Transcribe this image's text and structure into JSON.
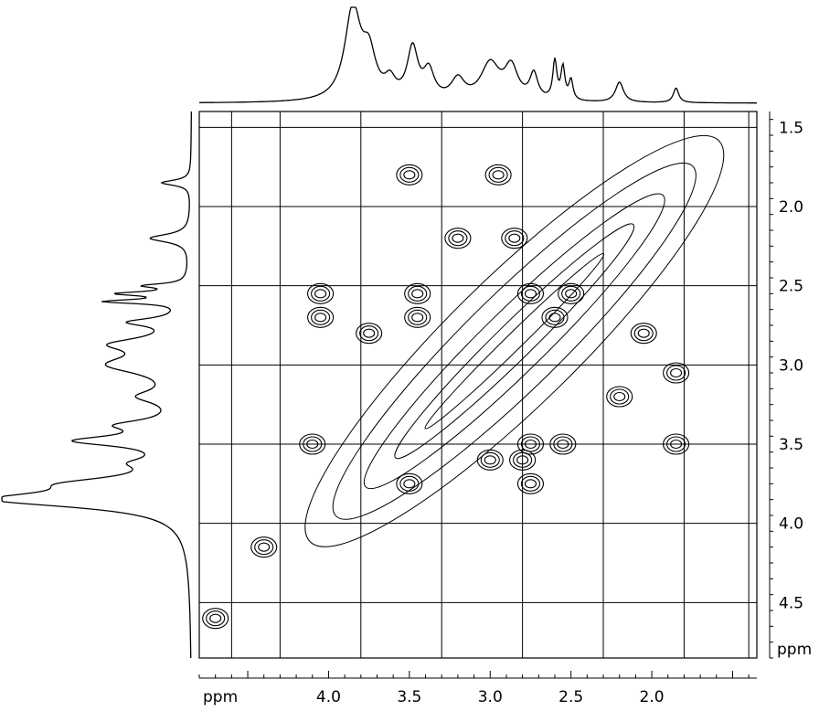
{
  "chart_data": {
    "type": "2d-contour",
    "title": "",
    "xlabel": "ppm",
    "ylabel": "ppm",
    "x_axis": {
      "direction": "reversed",
      "range": [
        4.8,
        1.35
      ],
      "major_ticks": [
        4.0,
        3.5,
        3.0,
        2.5,
        2.0
      ],
      "tick_labels": [
        "4.0",
        "3.5",
        "3.0",
        "2.5",
        "2.0"
      ],
      "unit_label": "ppm"
    },
    "y_axis": {
      "direction": "reversed",
      "range": [
        1.4,
        4.85
      ],
      "major_ticks": [
        1.5,
        2.0,
        2.5,
        3.0,
        3.5,
        4.0,
        4.5
      ],
      "tick_labels": [
        "1.5",
        "2.0",
        "2.5",
        "3.0",
        "3.5",
        "4.0",
        "4.5"
      ],
      "unit_label": "ppm"
    },
    "grid": true,
    "grid_x": [
      4.6,
      4.3,
      3.8,
      3.3,
      2.8,
      2.3,
      1.8,
      1.4
    ],
    "grid_y": [
      1.5,
      2.0,
      2.5,
      3.0,
      3.5,
      4.0,
      4.5
    ],
    "projection_1d": {
      "peaks": [
        {
          "ppm": 3.85,
          "height": 1.0,
          "width": 0.06
        },
        {
          "ppm": 3.75,
          "height": 0.45,
          "width": 0.05
        },
        {
          "ppm": 3.62,
          "height": 0.18,
          "width": 0.04
        },
        {
          "ppm": 3.48,
          "height": 0.55,
          "width": 0.04
        },
        {
          "ppm": 3.38,
          "height": 0.3,
          "width": 0.04
        },
        {
          "ppm": 3.2,
          "height": 0.22,
          "width": 0.05
        },
        {
          "ppm": 3.0,
          "height": 0.4,
          "width": 0.07
        },
        {
          "ppm": 2.87,
          "height": 0.35,
          "width": 0.05
        },
        {
          "ppm": 2.73,
          "height": 0.28,
          "width": 0.03
        },
        {
          "ppm": 2.6,
          "height": 0.42,
          "width": 0.015
        },
        {
          "ppm": 2.55,
          "height": 0.35,
          "width": 0.015
        },
        {
          "ppm": 2.5,
          "height": 0.22,
          "width": 0.015
        },
        {
          "ppm": 2.2,
          "height": 0.22,
          "width": 0.03
        },
        {
          "ppm": 1.85,
          "height": 0.16,
          "width": 0.02
        }
      ]
    },
    "diagonal": {
      "from": [
        1.7,
        1.7
      ],
      "to": [
        4.0,
        4.0
      ]
    },
    "cross_peaks": [
      {
        "x": 3.5,
        "y": 1.8
      },
      {
        "x": 2.95,
        "y": 1.8
      },
      {
        "x": 3.2,
        "y": 2.2
      },
      {
        "x": 2.85,
        "y": 2.2
      },
      {
        "x": 4.05,
        "y": 2.55
      },
      {
        "x": 3.45,
        "y": 2.55
      },
      {
        "x": 2.75,
        "y": 2.55
      },
      {
        "x": 2.5,
        "y": 2.55
      },
      {
        "x": 4.05,
        "y": 2.7
      },
      {
        "x": 3.45,
        "y": 2.7
      },
      {
        "x": 2.6,
        "y": 2.7
      },
      {
        "x": 3.75,
        "y": 2.8
      },
      {
        "x": 2.05,
        "y": 2.8
      },
      {
        "x": 1.85,
        "y": 3.05
      },
      {
        "x": 2.2,
        "y": 3.2
      },
      {
        "x": 4.1,
        "y": 3.5
      },
      {
        "x": 2.75,
        "y": 3.5
      },
      {
        "x": 2.55,
        "y": 3.5
      },
      {
        "x": 1.85,
        "y": 3.5
      },
      {
        "x": 3.0,
        "y": 3.6
      },
      {
        "x": 2.8,
        "y": 3.6
      },
      {
        "x": 3.5,
        "y": 3.75
      },
      {
        "x": 2.75,
        "y": 3.75
      },
      {
        "x": 4.4,
        "y": 4.15
      },
      {
        "x": 4.7,
        "y": 4.6
      }
    ]
  }
}
